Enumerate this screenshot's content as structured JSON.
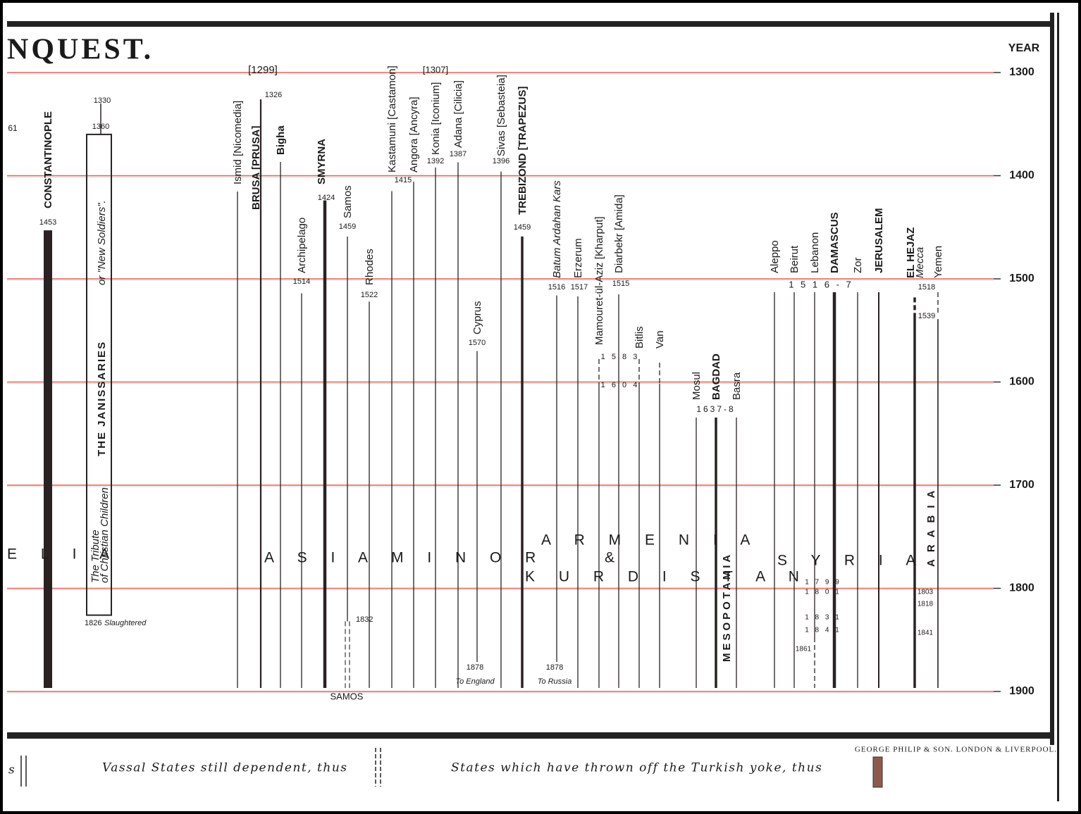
{
  "title": "NQUEST.",
  "axis": {
    "label": "YEAR",
    "ticks": [
      1300,
      1400,
      1500,
      1600,
      1700,
      1800,
      1900
    ]
  },
  "janissaries": {
    "title": "THE JANISSARIES",
    "subtitle": "or \"New Soldiers\".",
    "note": [
      "The Tribute",
      "of Christian Children"
    ],
    "first_year": 1330,
    "start": 1360,
    "end": 1826,
    "end_note": "Slaughtered"
  },
  "items": [
    {
      "label": "CONSTANTINOPLE",
      "year": 1453
    },
    {
      "label": "Ismid [Nicomedia]"
    },
    {
      "label": "BRUSA [PRUSA]",
      "year": 1326
    },
    {
      "label": "Bigha"
    },
    {
      "label": "Archipelago",
      "year": 1514
    },
    {
      "label": "SMYRNA",
      "year": 1424
    },
    {
      "label": "Samos",
      "year": 1459,
      "end_year": 1832
    },
    {
      "label": "Rhodes",
      "year": 1522
    },
    {
      "label": "Kastamuni [Castamon]",
      "year": 1415
    },
    {
      "label": "Angora [Ancyra]"
    },
    {
      "label": "Konia [Iconium]",
      "year": 1392
    },
    {
      "label": "Adana [Cilicia]",
      "year": 1387
    },
    {
      "label": "Cyprus",
      "year": 1570,
      "end_year": 1878,
      "end_note": "To England"
    },
    {
      "label": "Sivas [Sebasteia]",
      "year": 1396
    },
    {
      "label": "TREBIZOND [TRAPEZUS]",
      "year": 1459
    },
    {
      "label": "Batum Ardahan Kars",
      "year": 1516,
      "end_year": 1878,
      "end_note": "To Russia"
    },
    {
      "label": "Erzerum",
      "year": 1517
    },
    {
      "label": "Mamouret-ül-Aziz [Kharput]"
    },
    {
      "label": "Diarbekr [Amida]",
      "year": 1515
    },
    {
      "label": "Bitlis"
    },
    {
      "label": "Van"
    },
    {
      "label": "Mosul"
    },
    {
      "label": "BAGDAD"
    },
    {
      "label": "Basra"
    },
    {
      "label": "Aleppo"
    },
    {
      "label": "Beirut"
    },
    {
      "label": "Lebanon"
    },
    {
      "label": "DAMASCUS"
    },
    {
      "label": "Zor"
    },
    {
      "label": "JERUSALEM"
    },
    {
      "label": "EL HEJAZ",
      "year": 1518
    },
    {
      "label": "Mecca"
    },
    {
      "label": "Yemen",
      "year": 1539
    }
  ],
  "annotations": [
    "61",
    "[1299]",
    "[1307]",
    "1 5 8 3",
    "1 6 0 4",
    "1637-8",
    "1 5 1 6 - 7",
    "1 7 9 9",
    "1 8 0 1",
    "1 8 3 1",
    "1 8 4 1",
    "1861",
    "1803",
    "1818",
    "1841",
    "SAMOS"
  ],
  "regions": [
    "E L I A",
    "A S I A",
    "M I N O R",
    "A R M E N I A",
    "&",
    "K U R D I S T A N",
    "S Y R I A",
    "MESOPOTAMIA",
    "ARABIA"
  ],
  "footer": {
    "publisher": "GEORGE PHILIP & SON. LONDON & LIVERPOOL.",
    "fragment": "s",
    "vassal": "Vassal States still dependent, thus",
    "free": "States which have thrown off the Turkish yoke, thus"
  }
}
